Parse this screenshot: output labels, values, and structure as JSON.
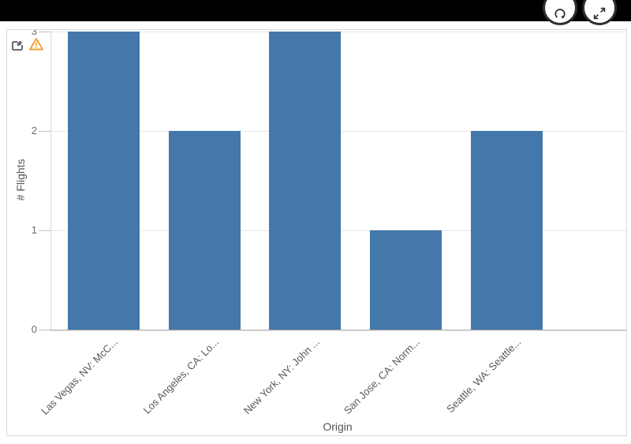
{
  "toolbar": {
    "buttons": [
      {
        "name": "refresh",
        "icon": "circular-arrow-icon"
      },
      {
        "name": "expand",
        "icon": "expand-arrows-icon"
      }
    ]
  },
  "panel": {
    "indicators": [
      {
        "name": "shared-object",
        "icon": "screen-link-icon"
      },
      {
        "name": "warning",
        "icon": "warning-triangle-icon",
        "color": "#EF9620"
      }
    ]
  },
  "chart_data": {
    "type": "bar",
    "categories": [
      "Las Vegas, NV: McC...",
      "Los Angeles, CA: Lo...",
      "New York, NY: John ...",
      "San Jose, CA: Norm...",
      "Seattle, WA: Seattle..."
    ],
    "values": [
      3,
      2,
      3,
      1,
      2
    ],
    "title": "",
    "xlabel": "Origin",
    "ylabel": "# Flights",
    "ylim": [
      0,
      3
    ],
    "yticks": [
      0,
      1,
      2,
      3
    ],
    "grid": true,
    "legend": false,
    "bar_color": "#4477AA"
  },
  "colors": {
    "bar": "#4477AA",
    "warning": "#EF9620",
    "grid": "#E6E6E6",
    "baseline": "#ADADAD",
    "axis_text": "#6A6A6A",
    "panel_border": "#D9D9D9",
    "topbar": "#000000"
  }
}
